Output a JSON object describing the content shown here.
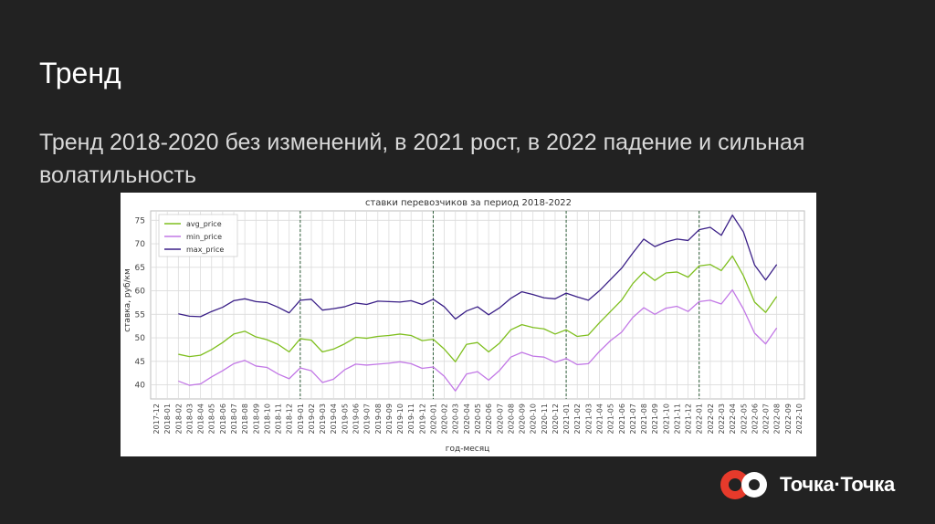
{
  "slide": {
    "title": "Тренд",
    "subtitle": "Тренд 2018-2020 без изменений, в 2021 рост, в 2022 падение и сильная волатильность"
  },
  "brand": {
    "name": "Точка·Точка",
    "logo_icon": "two-circles-logo-icon",
    "colors": {
      "red": "#e63a2b",
      "white": "#ffffff"
    }
  },
  "chart_data": {
    "type": "line",
    "title": "ставки перевозчиков за период 2018-2022",
    "xlabel": "год-месяц",
    "ylabel": "ставка, руб/км",
    "ylim": [
      37,
      77
    ],
    "yticks": [
      40,
      45,
      50,
      55,
      60,
      65,
      70,
      75
    ],
    "grid": true,
    "legend_position": "top-left",
    "x": [
      "2017-12",
      "2018-01",
      "2018-02",
      "2018-03",
      "2018-04",
      "2018-05",
      "2018-06",
      "2018-07",
      "2018-08",
      "2018-09",
      "2018-10",
      "2018-11",
      "2018-12",
      "2019-01",
      "2019-02",
      "2019-03",
      "2019-04",
      "2019-05",
      "2019-06",
      "2019-07",
      "2019-08",
      "2019-09",
      "2019-10",
      "2019-11",
      "2019-12",
      "2020-01",
      "2020-02",
      "2020-03",
      "2020-04",
      "2020-05",
      "2020-06",
      "2020-07",
      "2020-08",
      "2020-09",
      "2020-10",
      "2020-11",
      "2020-12",
      "2021-01",
      "2021-02",
      "2021-03",
      "2021-04",
      "2021-05",
      "2021-06",
      "2021-07",
      "2021-08",
      "2021-09",
      "2021-10",
      "2021-11",
      "2021-12",
      "2022-01",
      "2022-02",
      "2022-03",
      "2022-04",
      "2022-05",
      "2022-06",
      "2022-07",
      "2022-08",
      "2022-09",
      "2022-10"
    ],
    "vlines": [
      "2019-01",
      "2020-01",
      "2021-01",
      "2022-01"
    ],
    "series": [
      {
        "name": "avg_price",
        "color": "#7fbf1f",
        "values": [
          null,
          null,
          46.5,
          46.0,
          46.3,
          47.5,
          49.0,
          50.8,
          51.4,
          50.2,
          49.6,
          48.6,
          47.0,
          49.8,
          49.5,
          47.0,
          47.6,
          48.7,
          50.1,
          49.9,
          50.3,
          50.5,
          50.8,
          50.5,
          49.4,
          49.7,
          47.6,
          44.9,
          48.6,
          49.0,
          47.0,
          48.9,
          51.7,
          52.8,
          52.2,
          51.9,
          50.8,
          51.7,
          50.3,
          50.6,
          53.2,
          55.6,
          58.0,
          61.5,
          64.0,
          62.2,
          63.8,
          64.0,
          62.9,
          65.3,
          65.6,
          64.3,
          67.4,
          63.2,
          57.6,
          55.4,
          58.8,
          null,
          null
        ]
      },
      {
        "name": "min_price",
        "color": "#c278e6",
        "values": [
          null,
          null,
          40.8,
          39.9,
          40.2,
          41.7,
          43.0,
          44.5,
          45.2,
          44.0,
          43.7,
          42.3,
          41.3,
          43.6,
          43.0,
          40.5,
          41.2,
          43.2,
          44.4,
          44.2,
          44.4,
          44.6,
          44.9,
          44.5,
          43.5,
          43.8,
          41.8,
          38.7,
          42.3,
          42.8,
          41.0,
          43.1,
          45.9,
          46.9,
          46.1,
          45.9,
          44.8,
          45.6,
          44.3,
          44.5,
          47.1,
          49.4,
          51.2,
          54.3,
          56.4,
          55.0,
          56.3,
          56.7,
          55.6,
          57.7,
          58.0,
          57.2,
          60.2,
          56.1,
          51.0,
          48.7,
          52.1,
          null,
          null
        ]
      },
      {
        "name": "max_price",
        "color": "#3a1f87",
        "values": [
          null,
          null,
          55.1,
          54.6,
          54.5,
          55.6,
          56.5,
          57.9,
          58.3,
          57.7,
          57.5,
          56.5,
          55.3,
          58.0,
          58.2,
          55.9,
          56.2,
          56.6,
          57.4,
          57.1,
          57.8,
          57.7,
          57.6,
          57.9,
          57.1,
          58.2,
          56.6,
          54.0,
          55.7,
          56.6,
          54.9,
          56.4,
          58.4,
          59.8,
          59.2,
          58.5,
          58.3,
          59.5,
          58.7,
          58.0,
          60.0,
          62.4,
          64.8,
          68.0,
          71.0,
          69.4,
          70.4,
          71.0,
          70.7,
          73.0,
          73.5,
          71.8,
          76.1,
          72.5,
          65.5,
          62.3,
          65.6,
          null,
          null
        ]
      }
    ]
  }
}
